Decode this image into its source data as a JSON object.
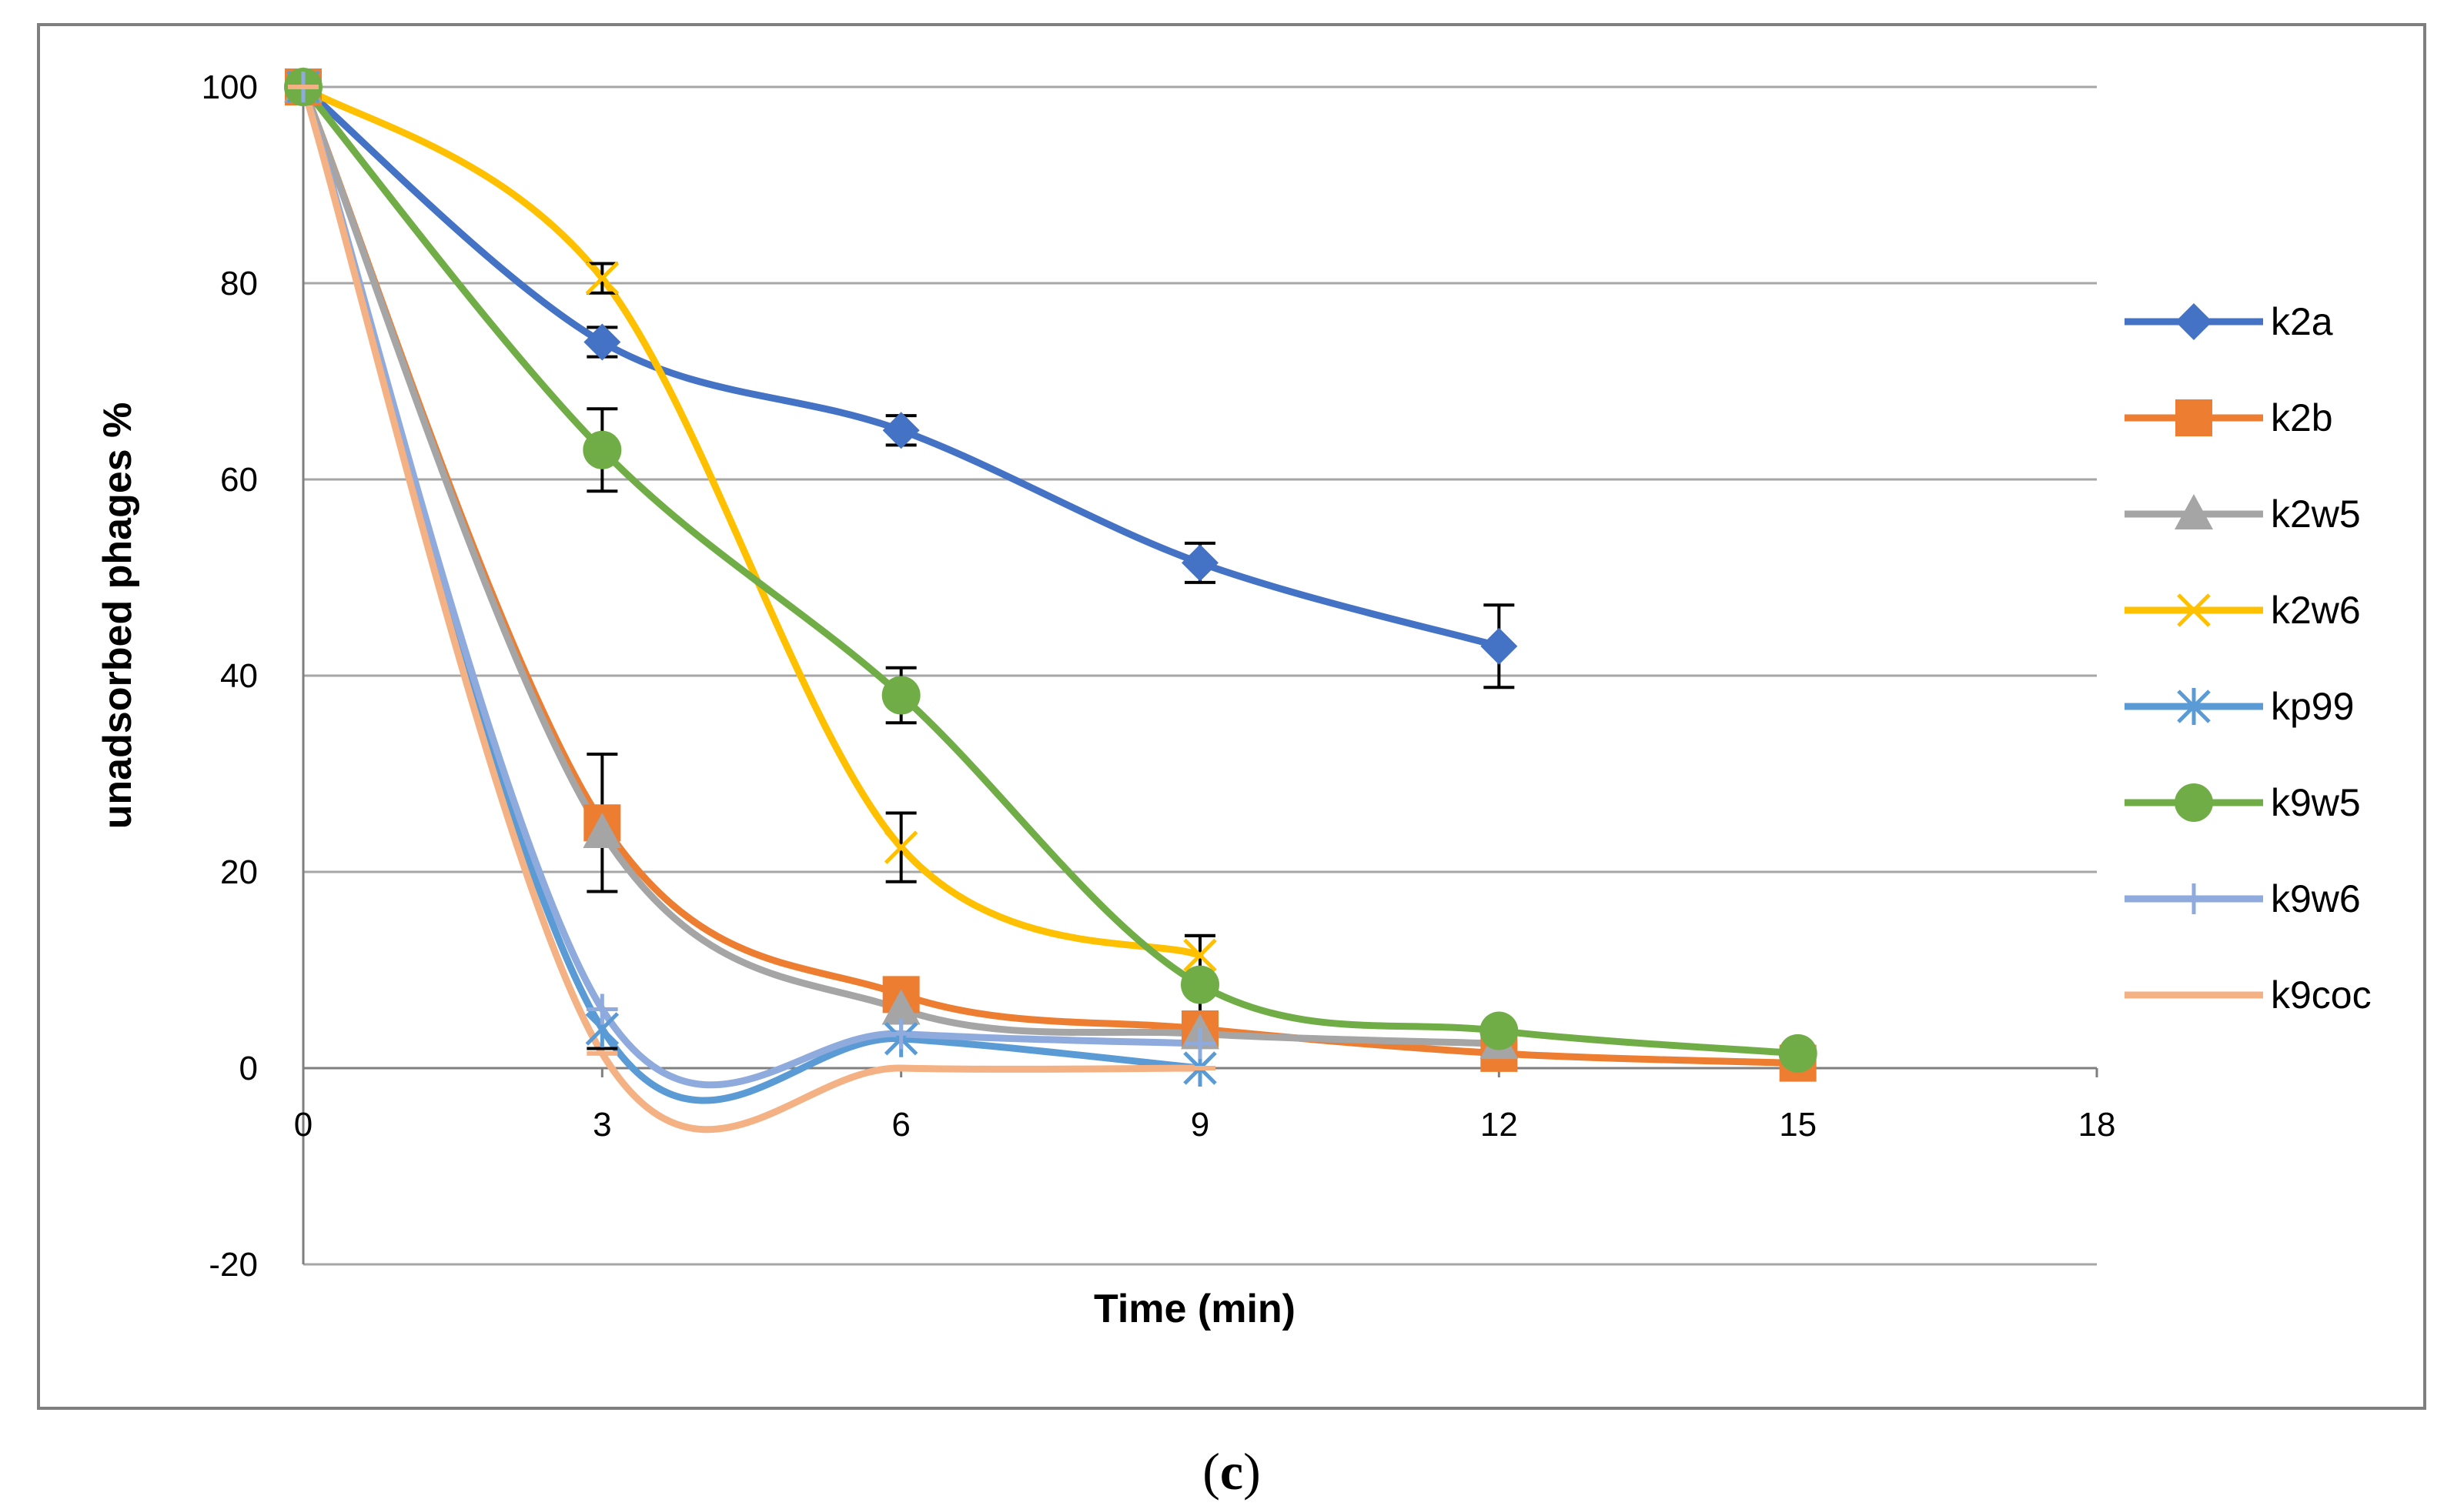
{
  "chart_data": {
    "type": "line",
    "title": "",
    "xlabel": "Time (min)",
    "ylabel": "unadsorbed phages %",
    "xlim": [
      0,
      18
    ],
    "ylim": [
      -20,
      100
    ],
    "x_ticks": [
      0,
      3,
      6,
      9,
      12,
      15,
      18
    ],
    "y_ticks": [
      -20,
      0,
      20,
      40,
      60,
      80,
      100
    ],
    "x_tick_labels": [
      "0",
      "3",
      "6",
      "9",
      "12",
      "15",
      "18"
    ],
    "y_tick_labels": [
      "-20",
      "0",
      "20",
      "40",
      "60",
      "80",
      "100"
    ],
    "grid": "horizontal",
    "legend_position": "right",
    "caption": {
      "open": "(",
      "letter": "c",
      "close": ")"
    },
    "series": [
      {
        "name": "k2a",
        "color": "#4472C4",
        "marker": "diamond",
        "x": [
          0,
          3,
          6,
          9,
          12
        ],
        "y": [
          100,
          74,
          65,
          51.5,
          43
        ],
        "err": [
          0,
          1.5,
          1.5,
          2,
          4.2
        ]
      },
      {
        "name": "k2b",
        "color": "#ED7D31",
        "marker": "square",
        "x": [
          0,
          3,
          6,
          9,
          12,
          15
        ],
        "y": [
          100,
          25,
          7.5,
          4,
          1.5,
          0.5
        ],
        "err": [
          0,
          7,
          0,
          0,
          0,
          0
        ]
      },
      {
        "name": "k2w5",
        "color": "#A5A5A5",
        "marker": "triangle",
        "x": [
          0,
          3,
          6,
          9,
          12
        ],
        "y": [
          100,
          24,
          6,
          3.5,
          2.5
        ],
        "err": [
          0,
          0,
          0,
          0,
          0
        ]
      },
      {
        "name": "k2w6",
        "color": "#FFC000",
        "marker": "x",
        "x": [
          0,
          3,
          6,
          9
        ],
        "y": [
          100,
          80.5,
          22.5,
          11.5
        ],
        "err": [
          0,
          1.5,
          3.5,
          2
        ]
      },
      {
        "name": "kp99",
        "color": "#5B9BD5",
        "marker": "star",
        "x": [
          0,
          3,
          6,
          9
        ],
        "y": [
          100,
          4,
          3,
          0
        ],
        "err": [
          0,
          2,
          0,
          0
        ]
      },
      {
        "name": "k9w5",
        "color": "#70AD47",
        "marker": "circle",
        "x": [
          0,
          3,
          6,
          9,
          12,
          15
        ],
        "y": [
          100,
          63,
          38,
          8.5,
          3.8,
          1.5
        ],
        "err": [
          0,
          4.2,
          2.8,
          5,
          0,
          0
        ]
      },
      {
        "name": "k9w6",
        "color": "#8FAADC",
        "marker": "plus",
        "x": [
          0,
          3,
          6,
          9
        ],
        "y": [
          100,
          6,
          3.5,
          2.5
        ],
        "err": [
          0,
          0,
          0,
          0
        ]
      },
      {
        "name": "k9coc",
        "color": "#F4B183",
        "marker": "dash",
        "x": [
          0,
          3,
          6,
          9
        ],
        "y": [
          100,
          1.5,
          0,
          0
        ],
        "err": [
          0,
          0,
          0,
          0
        ]
      }
    ]
  }
}
